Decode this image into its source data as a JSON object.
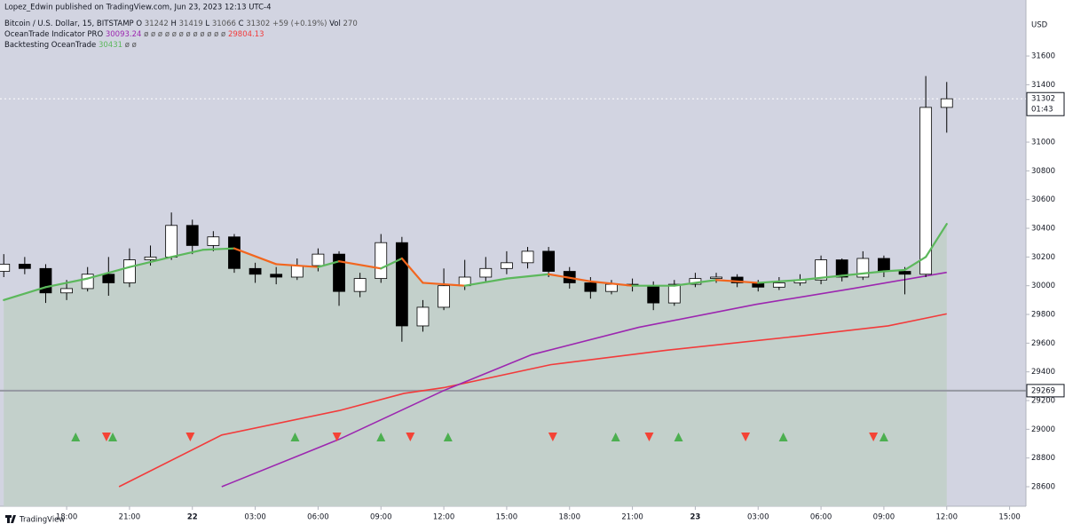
{
  "chart_data": {
    "type": "candlestick",
    "publisher": "Lopez_Edwin published on TradingView.com, Jun 23, 2023 12:13 UTC-4",
    "symbol": "Bitcoin / U.S. Dollar, 15, BITSTAMP",
    "ohlc_legend": [
      {
        "label": "O",
        "value": 31242
      },
      {
        "label": "H",
        "value": 31419
      },
      {
        "label": "L",
        "value": 31066
      },
      {
        "label": "C",
        "value": 31302
      }
    ],
    "change": "+59 (+0.19%)",
    "volume": {
      "label": "Vol",
      "value": 270
    },
    "indicator_name": "OceanTrade Indicator PRO",
    "indicator_value_1": 30093.24,
    "indicator_empty": "ø ø ø ø ø ø ø ø ø ø ø ø",
    "indicator_value_2": 29804.13,
    "backtest_name": "Backtesting OceanTrade",
    "backtest_value": 30431,
    "backtest_empty": "ø ø",
    "currency": "USD",
    "brand": "TradingView",
    "xlim": [
      -0.18,
      48.78
    ],
    "ylim": [
      28464,
      31990
    ],
    "yticks": [
      28600,
      28800,
      29000,
      29200,
      29400,
      29600,
      29800,
      30000,
      30200,
      30400,
      30600,
      30800,
      31000,
      31200,
      31400,
      31600
    ],
    "xticks": [
      {
        "value": 3,
        "label": "18:00"
      },
      {
        "value": 6,
        "label": "21:00"
      },
      {
        "value": 9,
        "label": "22"
      },
      {
        "value": 12,
        "label": "03:00"
      },
      {
        "value": 15,
        "label": "06:00"
      },
      {
        "value": 18,
        "label": "09:00"
      },
      {
        "value": 21,
        "label": "12:00"
      },
      {
        "value": 24,
        "label": "15:00"
      },
      {
        "value": 27,
        "label": "18:00"
      },
      {
        "value": 30,
        "label": "21:00"
      },
      {
        "value": 33,
        "label": "23"
      },
      {
        "value": 36,
        "label": "03:00"
      },
      {
        "value": 39,
        "label": "06:00"
      },
      {
        "value": 42,
        "label": "09:00"
      },
      {
        "value": 45,
        "label": "12:00"
      },
      {
        "value": 48,
        "label": "15:00"
      }
    ],
    "candles": {
      "up_color": "#ffffff",
      "down_color": "#000000",
      "wick_color": "#000000",
      "x": [
        0,
        1,
        2,
        3,
        4,
        5,
        6,
        7,
        8,
        9,
        10,
        11,
        12,
        13,
        14,
        15,
        16,
        17,
        18,
        19,
        20,
        21,
        22,
        23,
        24,
        25,
        26,
        27,
        28,
        29,
        30,
        31,
        32,
        33,
        34,
        35,
        36,
        37,
        38,
        39,
        40,
        41,
        42,
        43,
        44,
        45
      ],
      "open": [
        30100,
        30150,
        30120,
        29950,
        29980,
        30080,
        30020,
        30180,
        30200,
        30420,
        30280,
        30340,
        30120,
        30080,
        30060,
        30140,
        30220,
        29960,
        30050,
        30300,
        29720,
        29850,
        30000,
        30060,
        30120,
        30160,
        30240,
        30100,
        30020,
        29960,
        30010,
        30000,
        29880,
        30010,
        30050,
        30060,
        30020,
        29990,
        30020,
        30040,
        30180,
        30060,
        30190,
        30100,
        30080,
        31242
      ],
      "high": [
        30220,
        30200,
        30150,
        30040,
        30130,
        30200,
        30260,
        30280,
        30510,
        30460,
        30380,
        30360,
        30160,
        30130,
        30190,
        30260,
        30240,
        30090,
        30360,
        30340,
        29900,
        30120,
        30180,
        30200,
        30240,
        30270,
        30270,
        30130,
        30060,
        30040,
        30050,
        30030,
        30040,
        30090,
        30090,
        30080,
        30040,
        30060,
        30080,
        30210,
        30190,
        30240,
        30210,
        30130,
        31460,
        31419
      ],
      "low": [
        30060,
        30080,
        29880,
        29900,
        29960,
        29930,
        29990,
        30140,
        30180,
        30220,
        30240,
        30090,
        30020,
        30010,
        30040,
        30100,
        29860,
        29920,
        30020,
        29610,
        29680,
        29830,
        29970,
        30030,
        30080,
        30120,
        30060,
        29980,
        29910,
        29940,
        29960,
        29830,
        29860,
        29990,
        30020,
        29990,
        29960,
        29970,
        30000,
        30010,
        30030,
        30040,
        30060,
        29940,
        30060,
        31066
      ],
      "close": [
        30150,
        30120,
        29950,
        29980,
        30080,
        30020,
        30180,
        30200,
        30420,
        30280,
        30340,
        30120,
        30080,
        30060,
        30140,
        30220,
        29960,
        30050,
        30300,
        29720,
        29850,
        30000,
        30060,
        30120,
        30160,
        30240,
        30100,
        30020,
        29960,
        30010,
        30000,
        29880,
        30010,
        30050,
        30060,
        30020,
        29990,
        30020,
        30040,
        30180,
        30060,
        30190,
        30100,
        30080,
        31242,
        31302
      ]
    },
    "series": [
      {
        "name": "Backtesting OceanTrade",
        "color": "#5cb85c",
        "down_color": "#f2661e",
        "area_color": "#c3d0cb",
        "x": [
          0,
          2,
          4,
          6,
          8,
          9.5,
          11,
          13,
          15,
          16,
          18,
          19,
          20,
          22,
          24,
          26,
          28,
          30,
          32,
          34,
          36,
          38,
          40,
          42,
          43,
          44,
          45
        ],
        "values": [
          29900,
          29990,
          30050,
          30130,
          30200,
          30250,
          30260,
          30150,
          30130,
          30170,
          30120,
          30190,
          30020,
          30000,
          30050,
          30080,
          30030,
          30000,
          30000,
          30040,
          30020,
          30040,
          30070,
          30100,
          30110,
          30200,
          30430
        ]
      },
      {
        "name": "OceanTrade Indicator PRO",
        "color": "#9c27b0",
        "x": [
          10.4,
          16,
          21,
          25.2,
          30.3,
          35.9,
          40.5,
          45
        ],
        "values": [
          28600,
          28930,
          29270,
          29520,
          29710,
          29870,
          29980,
          30093
        ]
      },
      {
        "name": "OceanTrade Indicator PRO",
        "color": "#f23b3b",
        "x": [
          5.5,
          10.4,
          16,
          19.1,
          21,
          26.1,
          31.6,
          38,
          42.2,
          45
        ],
        "values": [
          28600,
          28960,
          29130,
          29250,
          29290,
          29450,
          29550,
          29650,
          29720,
          29804
        ]
      }
    ],
    "level_line": {
      "value": 29269,
      "color": "#9598a1"
    },
    "last_price": {
      "value": 31302,
      "countdown": "01:43"
    },
    "signals": {
      "buy_color": "#4caf50",
      "sell_color": "#f44336",
      "buy_x": [
        3.43,
        5.2,
        13.9,
        18.0,
        21.2,
        29.2,
        32.2,
        37.2,
        42.0
      ],
      "sell_x": [
        4.9,
        8.9,
        15.9,
        19.4,
        26.2,
        30.8,
        35.4,
        41.5
      ]
    }
  }
}
